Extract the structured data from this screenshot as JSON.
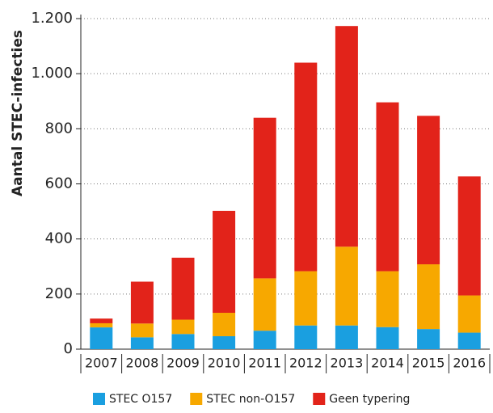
{
  "chart_data": {
    "type": "bar",
    "stacked": true,
    "ylabel": "Aantal STEC-infecties",
    "categories": [
      "2007",
      "2008",
      "2009",
      "2010",
      "2011",
      "2012",
      "2013",
      "2014",
      "2015",
      "2016"
    ],
    "series": [
      {
        "name": "STEC O157",
        "color": "#1a9fe0",
        "values": [
          79,
          43,
          55,
          47,
          67,
          86,
          86,
          80,
          73,
          60
        ]
      },
      {
        "name": "STEC non-O157",
        "color": "#f7a800",
        "values": [
          15,
          50,
          52,
          85,
          190,
          197,
          286,
          203,
          235,
          135
        ]
      },
      {
        "name": "Geen typering",
        "color": "#e2231a",
        "values": [
          17,
          152,
          225,
          370,
          583,
          757,
          801,
          613,
          539,
          432
        ]
      }
    ],
    "ylim": [
      0,
      1200
    ],
    "yticks": [
      0,
      200,
      400,
      600,
      800,
      {
        "value": 1000,
        "label": "1.000"
      },
      {
        "value": 1200,
        "label": "1.200"
      }
    ],
    "grid": true,
    "legend": "bottom"
  }
}
